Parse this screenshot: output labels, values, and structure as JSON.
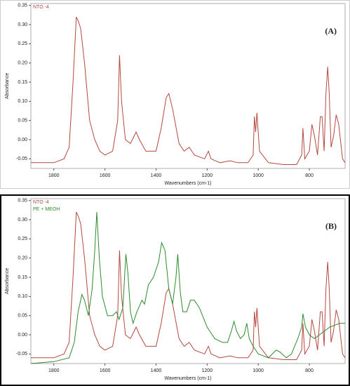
{
  "chart_data": [
    {
      "type": "line",
      "annotation": "(A)",
      "xlabel": "Wavenumbers (cm-1)",
      "ylabel": "Absorbance",
      "xlim": [
        1890,
        660
      ],
      "ylim": [
        -0.075,
        0.355
      ],
      "xticks": [
        1800,
        1600,
        1400,
        1200,
        1000,
        800
      ],
      "yticks": [
        0.35,
        {
          "value": 0.3,
          "label": "0.30"
        },
        0.25,
        {
          "value": 0.2,
          "label": "0.20"
        },
        0.15,
        {
          "value": 0.1,
          "label": "0.10"
        },
        0.05,
        {
          "value": 0,
          "label": "0.00"
        },
        -0.05
      ],
      "reverse_x": true,
      "grid": false,
      "legend": "upper left",
      "series": [
        {
          "name": "NTO -4",
          "color": "#b5483e",
          "x": [
            1890,
            1800,
            1760,
            1740,
            1725,
            1712,
            1705,
            1695,
            1680,
            1660,
            1640,
            1620,
            1600,
            1570,
            1550,
            1543,
            1535,
            1520,
            1500,
            1478,
            1465,
            1440,
            1400,
            1380,
            1360,
            1350,
            1335,
            1310,
            1290,
            1270,
            1250,
            1210,
            1195,
            1185,
            1150,
            1110,
            1080,
            1040,
            1020,
            1015,
            1010,
            1005,
            995,
            960,
            900,
            850,
            830,
            825,
            818,
            800,
            790,
            780,
            768,
            757,
            750,
            742,
            735,
            728,
            722,
            715,
            705,
            695,
            685,
            670,
            660
          ],
          "values": [
            -0.06,
            -0.06,
            -0.05,
            -0.02,
            0.15,
            0.32,
            0.31,
            0.29,
            0.2,
            0.05,
            0.0,
            -0.03,
            -0.04,
            -0.03,
            0.05,
            0.22,
            0.1,
            0.0,
            -0.01,
            0.02,
            0.0,
            -0.03,
            -0.03,
            0.03,
            0.11,
            0.12,
            0.08,
            -0.01,
            -0.03,
            -0.02,
            -0.04,
            -0.05,
            -0.03,
            -0.05,
            -0.06,
            -0.055,
            -0.06,
            -0.06,
            -0.04,
            0.06,
            0.02,
            0.07,
            -0.03,
            -0.06,
            -0.065,
            -0.065,
            -0.04,
            0.03,
            -0.05,
            -0.03,
            0.04,
            0.01,
            -0.04,
            0.06,
            0.06,
            -0.03,
            0.12,
            0.19,
            0.12,
            -0.02,
            0.01,
            0.065,
            0.04,
            -0.05,
            -0.06
          ]
        }
      ]
    },
    {
      "type": "line",
      "annotation": "(B)",
      "xlabel": "Wavenumbers (cm-1)",
      "ylabel": "Absorbance",
      "xlim": [
        1890,
        660
      ],
      "ylim": [
        -0.075,
        0.355
      ],
      "xticks": [
        1800,
        1600,
        1400,
        1200,
        1000,
        800
      ],
      "yticks": [
        0.35,
        {
          "value": 0.3,
          "label": "0.30"
        },
        0.25,
        {
          "value": 0.2,
          "label": "0.20"
        },
        0.15,
        {
          "value": 0.1,
          "label": "0.10"
        },
        0.05,
        {
          "value": 0,
          "label": "0.00"
        },
        -0.05
      ],
      "reverse_x": true,
      "grid": false,
      "legend": "upper left",
      "series": [
        {
          "name": "NTO -4",
          "color": "#b5483e",
          "x": [
            1890,
            1800,
            1760,
            1740,
            1725,
            1712,
            1705,
            1695,
            1680,
            1660,
            1640,
            1620,
            1600,
            1570,
            1550,
            1543,
            1535,
            1520,
            1500,
            1478,
            1465,
            1440,
            1400,
            1380,
            1360,
            1350,
            1335,
            1310,
            1290,
            1270,
            1250,
            1210,
            1195,
            1185,
            1150,
            1110,
            1080,
            1040,
            1020,
            1015,
            1010,
            1005,
            995,
            960,
            900,
            850,
            830,
            825,
            818,
            800,
            790,
            780,
            768,
            757,
            750,
            742,
            735,
            728,
            722,
            715,
            705,
            695,
            685,
            670,
            660
          ],
          "values": [
            -0.06,
            -0.06,
            -0.05,
            -0.02,
            0.15,
            0.32,
            0.31,
            0.29,
            0.2,
            0.05,
            0.0,
            -0.03,
            -0.04,
            -0.03,
            0.05,
            0.22,
            0.1,
            0.0,
            -0.01,
            0.02,
            0.0,
            -0.03,
            -0.03,
            0.03,
            0.11,
            0.12,
            0.08,
            -0.01,
            -0.03,
            -0.02,
            -0.04,
            -0.05,
            -0.03,
            -0.05,
            -0.06,
            -0.055,
            -0.06,
            -0.06,
            -0.04,
            0.06,
            0.02,
            0.07,
            -0.03,
            -0.06,
            -0.065,
            -0.065,
            -0.04,
            0.03,
            -0.05,
            -0.03,
            0.04,
            0.01,
            -0.04,
            0.06,
            0.06,
            -0.03,
            0.12,
            0.19,
            0.12,
            -0.02,
            0.01,
            0.065,
            0.04,
            -0.05,
            -0.06
          ]
        },
        {
          "name": "PE + MEOH",
          "color": "#2e8b2e",
          "x": [
            1890,
            1800,
            1740,
            1720,
            1705,
            1690,
            1680,
            1665,
            1650,
            1640,
            1632,
            1622,
            1610,
            1590,
            1570,
            1555,
            1545,
            1530,
            1518,
            1510,
            1500,
            1490,
            1475,
            1455,
            1445,
            1430,
            1410,
            1390,
            1378,
            1365,
            1350,
            1335,
            1322,
            1315,
            1305,
            1295,
            1280,
            1265,
            1250,
            1230,
            1200,
            1170,
            1140,
            1120,
            1105,
            1095,
            1085,
            1070,
            1055,
            1045,
            1035,
            1020,
            1000,
            960,
            930,
            915,
            890,
            870,
            845,
            830,
            825,
            815,
            800,
            780,
            760,
            740,
            720,
            700,
            680,
            660
          ],
          "values": [
            -0.075,
            -0.07,
            -0.06,
            -0.02,
            0.06,
            0.105,
            0.09,
            0.05,
            0.12,
            0.22,
            0.32,
            0.2,
            0.1,
            0.05,
            0.05,
            0.06,
            0.04,
            0.07,
            0.21,
            0.16,
            0.06,
            0.03,
            0.06,
            0.09,
            0.08,
            0.13,
            0.15,
            0.19,
            0.24,
            0.22,
            0.12,
            0.08,
            0.15,
            0.21,
            0.11,
            0.06,
            0.06,
            0.09,
            0.09,
            0.07,
            0.02,
            -0.01,
            -0.02,
            -0.02,
            0.01,
            0.035,
            0.01,
            -0.01,
            0.0,
            0.03,
            -0.01,
            -0.03,
            -0.05,
            -0.06,
            -0.04,
            -0.045,
            -0.06,
            -0.05,
            -0.01,
            0.02,
            0.055,
            0.02,
            0.0,
            -0.01,
            0.0,
            0.01,
            0.02,
            0.025,
            0.03,
            0.03
          ]
        }
      ]
    }
  ]
}
